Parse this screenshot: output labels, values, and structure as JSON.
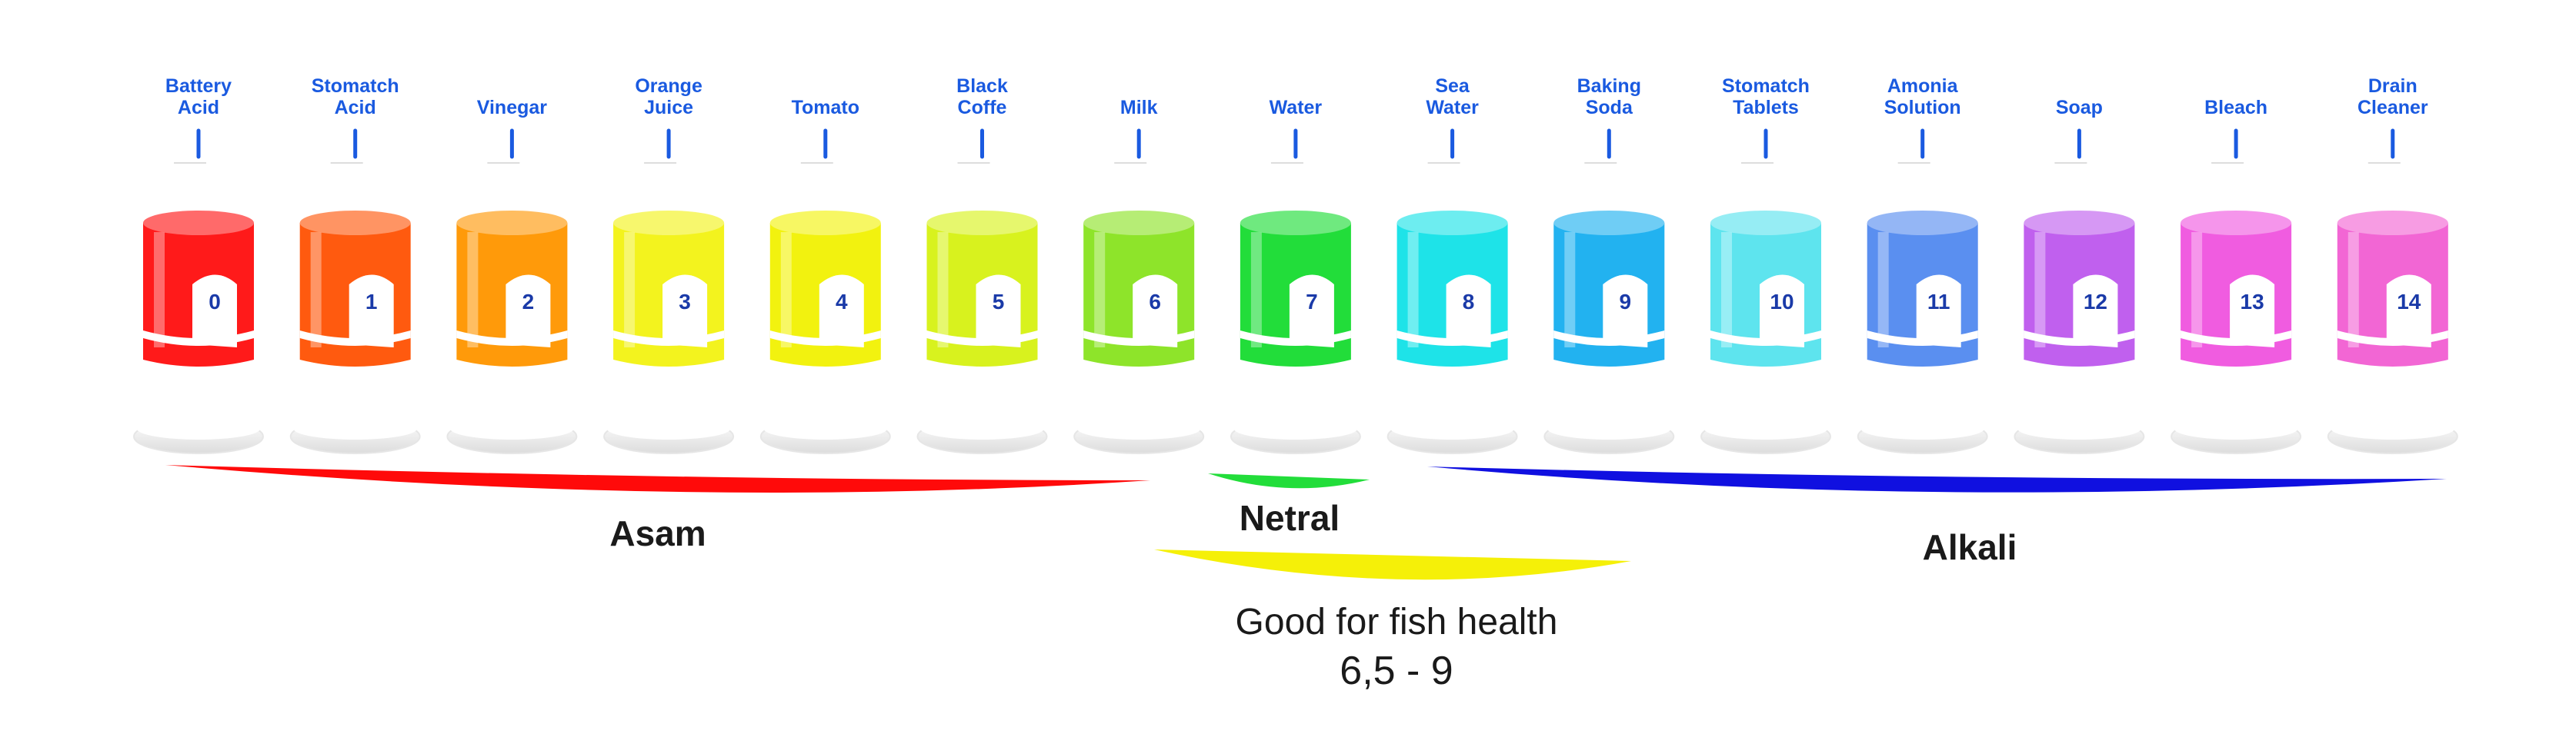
{
  "scale": [
    {
      "ph": "0",
      "name": "Battery Acid",
      "color": "#ff1a1a"
    },
    {
      "ph": "1",
      "name": "Stomatch Acid",
      "color": "#ff5a0f"
    },
    {
      "ph": "2",
      "name": "Vinegar",
      "color": "#ff9a0a"
    },
    {
      "ph": "3",
      "name": "Orange Juice",
      "color": "#f3f31e"
    },
    {
      "ph": "4",
      "name": "Tomato",
      "color": "#f2f20f"
    },
    {
      "ph": "5",
      "name": "Black Coffe",
      "color": "#d8f21e"
    },
    {
      "ph": "6",
      "name": "Milk",
      "color": "#8ee42a"
    },
    {
      "ph": "7",
      "name": "Water",
      "color": "#22dd3a"
    },
    {
      "ph": "8",
      "name": "Sea Water",
      "color": "#1ee3e8"
    },
    {
      "ph": "9",
      "name": "Baking Soda",
      "color": "#22b2f0"
    },
    {
      "ph": "10",
      "name": "Stomatch Tablets",
      "color": "#5ee4ee"
    },
    {
      "ph": "11",
      "name": "Amonia Solution",
      "color": "#5a8ff0"
    },
    {
      "ph": "12",
      "name": "Soap",
      "color": "#c060ee"
    },
    {
      "ph": "13",
      "name": "Bleach",
      "color": "#f05ce0"
    },
    {
      "ph": "14",
      "name": "Drain Cleaner",
      "color": "#f266d4"
    }
  ],
  "regions": {
    "acid": {
      "label": "Asam",
      "color": "#ff0a0a"
    },
    "neutral": {
      "label": "Netral",
      "color": "#22dd3a"
    },
    "alkali": {
      "label": "Alkali",
      "color": "#1010e0"
    }
  },
  "fish": {
    "label": "Good for fish health",
    "range": "6,5 - 9",
    "color": "#f5f008"
  },
  "colors": {
    "name_text": "#1a5ae0",
    "number_text": "#1a3aa8",
    "tick": "#1a5ae0"
  }
}
